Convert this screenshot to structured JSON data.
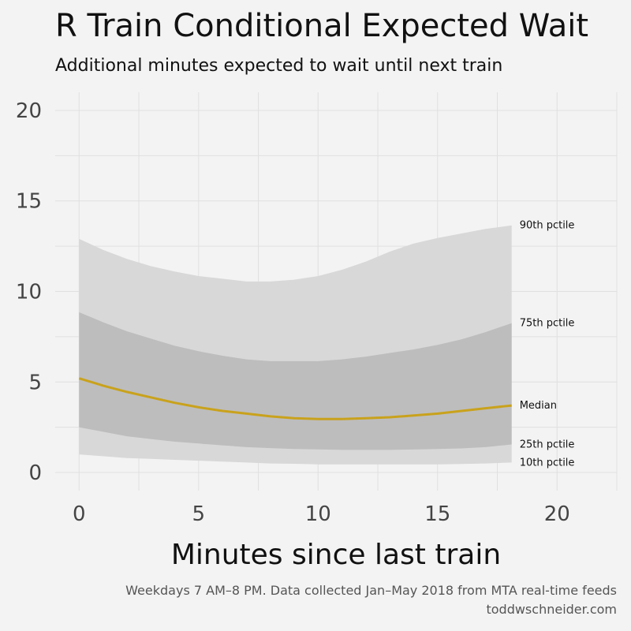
{
  "title": "R Train Conditional Expected Wait",
  "subtitle": "Additional minutes expected to wait until next train",
  "caption": {
    "line1": "Weekdays 7 AM–8 PM. Data collected Jan–May 2018 from MTA real-time feeds",
    "line2": "toddwschneider.com"
  },
  "colors": {
    "background": "#f3f3f3",
    "outer_band": "#d8d8d8",
    "inner_band": "#bdbdbd",
    "median": "#c9a21c",
    "grid": "#e0e0e0"
  },
  "chart_data": {
    "type": "area",
    "xlabel": "Minutes since last train",
    "ylabel": "",
    "xlim": [
      -1,
      22.5
    ],
    "ylim": [
      -1,
      21
    ],
    "xticks": [
      0,
      5,
      10,
      15,
      20
    ],
    "yticks": [
      0,
      5,
      10,
      15,
      20
    ],
    "grid": true,
    "x": [
      0,
      1,
      2,
      3,
      4,
      5,
      6,
      7,
      8,
      9,
      10,
      11,
      12,
      13,
      14,
      15,
      16,
      17,
      18.1
    ],
    "series": [
      {
        "name": "90th pctile",
        "values": [
          12.9,
          12.3,
          11.8,
          11.4,
          11.1,
          10.85,
          10.7,
          10.55,
          10.55,
          10.65,
          10.85,
          11.2,
          11.65,
          12.2,
          12.65,
          12.95,
          13.2,
          13.45,
          13.65
        ]
      },
      {
        "name": "75th pctile",
        "values": [
          8.85,
          8.3,
          7.8,
          7.4,
          7.0,
          6.7,
          6.45,
          6.25,
          6.15,
          6.15,
          6.15,
          6.25,
          6.4,
          6.6,
          6.8,
          7.05,
          7.35,
          7.75,
          8.25
        ]
      },
      {
        "name": "Median",
        "values": [
          5.2,
          4.8,
          4.45,
          4.15,
          3.85,
          3.6,
          3.4,
          3.25,
          3.1,
          3.0,
          2.95,
          2.95,
          3.0,
          3.05,
          3.15,
          3.25,
          3.4,
          3.55,
          3.7
        ]
      },
      {
        "name": "25th pctile",
        "values": [
          2.5,
          2.25,
          2.0,
          1.85,
          1.7,
          1.6,
          1.5,
          1.4,
          1.35,
          1.3,
          1.28,
          1.25,
          1.25,
          1.25,
          1.27,
          1.3,
          1.33,
          1.4,
          1.55
        ]
      },
      {
        "name": "10th pctile",
        "values": [
          1.0,
          0.9,
          0.8,
          0.75,
          0.7,
          0.65,
          0.6,
          0.55,
          0.5,
          0.48,
          0.45,
          0.45,
          0.45,
          0.45,
          0.45,
          0.45,
          0.47,
          0.5,
          0.55
        ]
      }
    ]
  }
}
